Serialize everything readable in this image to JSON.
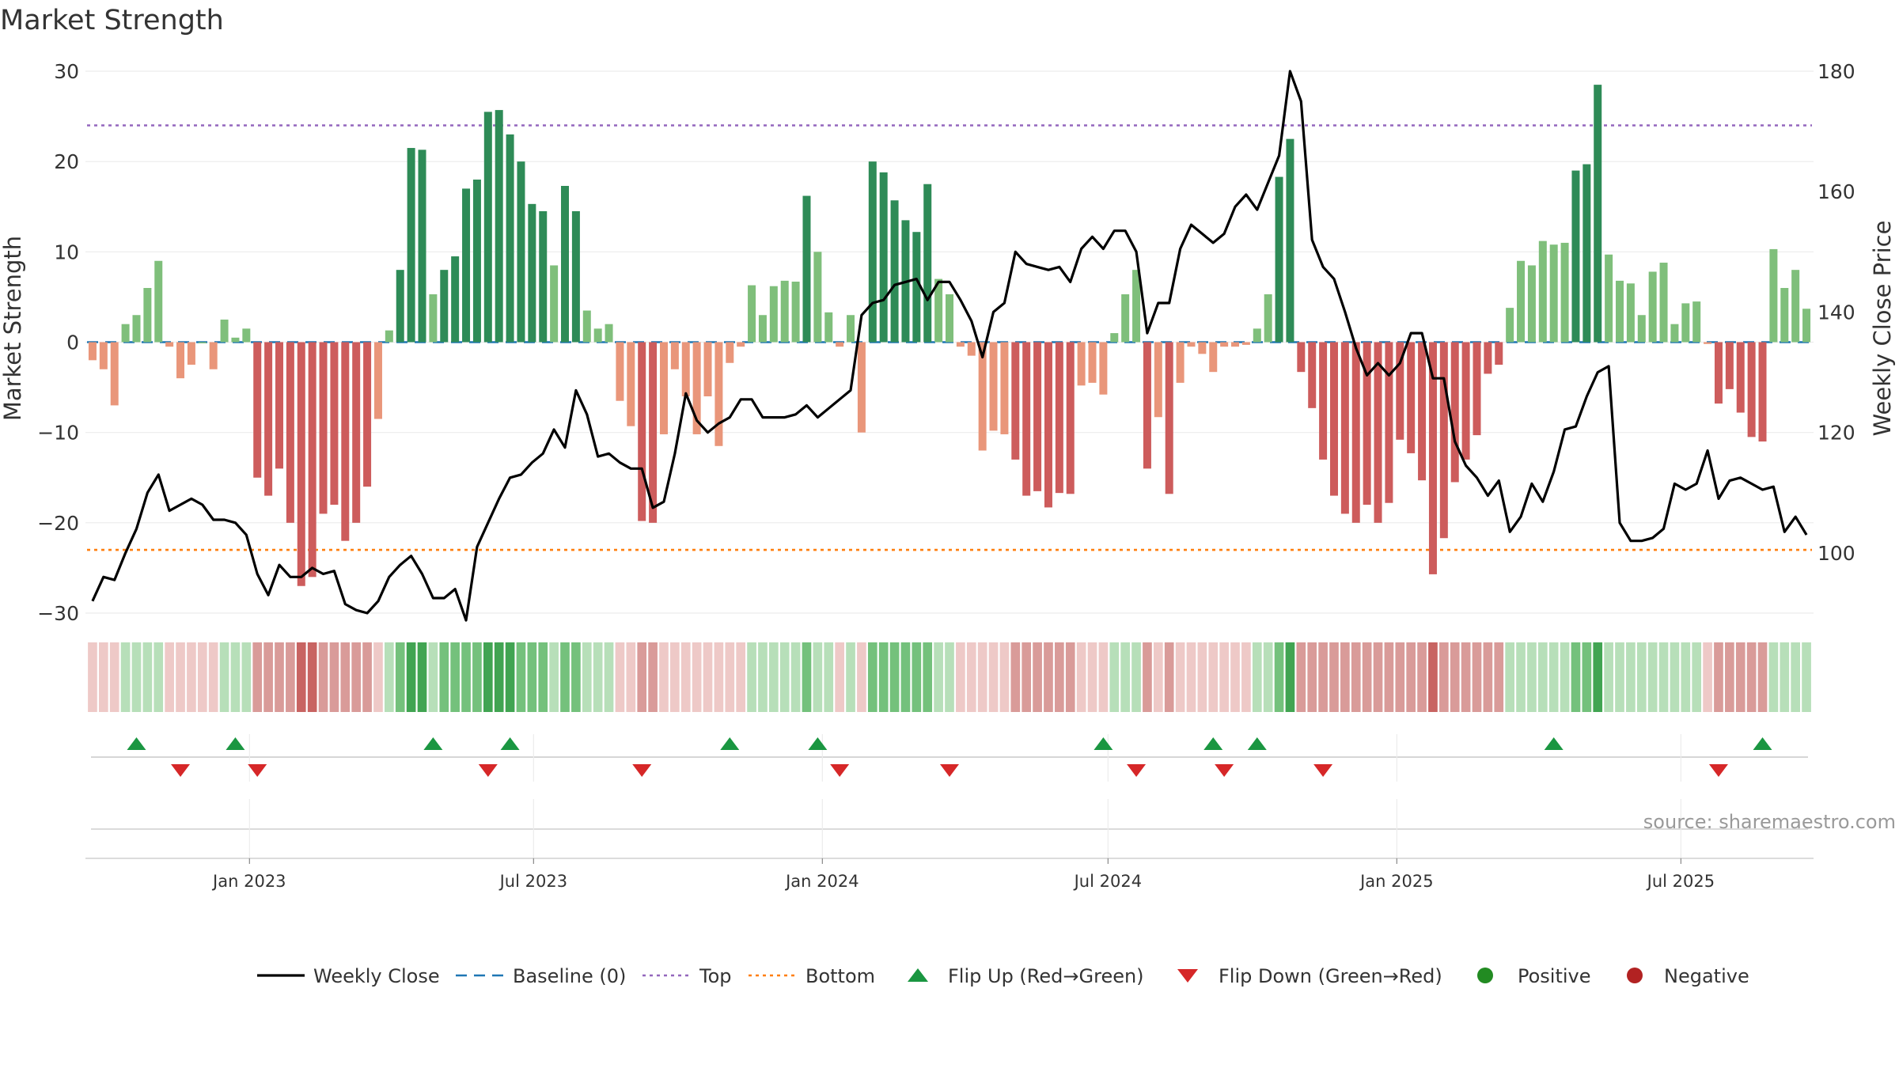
{
  "chart_data": {
    "type": "bar",
    "title": "Market Strength",
    "ylabel_left": "Market Strength",
    "ylabel_right": "Weekly Close Price",
    "source": "source: sharemaestro.com",
    "ylim_left": [
      -30,
      30
    ],
    "yticks_left": [
      30,
      20,
      10,
      0,
      -10,
      -20,
      -30
    ],
    "ytick_labels_left": [
      "30",
      "20",
      "10",
      "0",
      "−10",
      "−20",
      "−30"
    ],
    "ylim_right": [
      90,
      180
    ],
    "yticks_right": [
      180,
      160,
      140,
      120,
      100
    ],
    "x_start": "2022-09-23",
    "x_end": "2025-09-19",
    "xticks": [
      "2023-01-01",
      "2023-07-01",
      "2024-01-01",
      "2024-07-01",
      "2025-01-01",
      "2025-07-01"
    ],
    "xtick_labels": [
      "Jan 2023",
      "Jul 2023",
      "Jan 2024",
      "Jul 2024",
      "Jan 2025",
      "Jul 2025"
    ],
    "top_line": 24,
    "bottom_line": -23,
    "grid": true,
    "legend_position": "bottom",
    "colors": {
      "up_dark": "#2e8b57",
      "up_light": "#7fbf7b",
      "down_dark": "#cd5c5c",
      "down_light": "#e9967a",
      "close_line": "#000000",
      "baseline": "#1f77b4",
      "top": "#9467bd",
      "bottom": "#ff7f0e",
      "flip_up": "#1a9641",
      "flip_down": "#d62728",
      "positive": "#228b22",
      "negative": "#b22222"
    },
    "strength": [
      -2,
      -3,
      -7,
      2,
      3,
      6,
      9,
      -0.5,
      -4,
      -2.5,
      0,
      -3,
      2.5,
      0.5,
      1.5,
      -15,
      -17,
      -14,
      -20,
      -27,
      -26,
      -19,
      -18,
      -22,
      -20,
      -16,
      -8.5,
      1.3,
      8,
      21.5,
      21.3,
      5.3,
      8,
      9.5,
      17,
      18,
      25.5,
      25.7,
      23,
      20,
      15.3,
      14.5,
      8.5,
      17.3,
      14.5,
      3.5,
      1.5,
      2,
      -6.5,
      -9.3,
      -19.8,
      -20,
      -10.2,
      -3,
      -6,
      -10.2,
      -6,
      -11.5,
      -2.3,
      -0.5,
      6.3,
      3,
      6.2,
      6.8,
      6.7,
      16.2,
      10,
      3.3,
      -0.5,
      3,
      -10,
      20,
      18.8,
      15.7,
      13.5,
      12.2,
      17.5,
      7,
      5.3,
      -0.5,
      -1.5,
      -12,
      -9.8,
      -10.2,
      -13,
      -17,
      -16.5,
      -18.3,
      -16.7,
      -16.8,
      -4.8,
      -4.5,
      -5.8,
      1,
      5.3,
      8,
      -14,
      -8.3,
      -16.8,
      -4.5,
      -0.5,
      -1.3,
      -3.3,
      -0.5,
      -0.5,
      -0.3,
      1.5,
      5.3,
      18.3,
      22.5,
      -3.3,
      -7.3,
      -13,
      -17,
      -19,
      -20,
      -18,
      -20,
      -17.8,
      -10.8,
      -12.3,
      -15.3,
      -25.7,
      -21.7,
      -15.5,
      -13,
      -10.3,
      -3.5,
      -2.5,
      3.8,
      9,
      8.5,
      11.2,
      10.8,
      11,
      19,
      19.7,
      28.5,
      9.7,
      6.8,
      6.5,
      3,
      7.8,
      8.8,
      2,
      4.3,
      4.5,
      -0.2,
      -6.8,
      -5.2,
      -7.8,
      -10.5,
      -11,
      10.3,
      6,
      8,
      3.7
    ],
    "close": [
      92,
      96,
      95.5,
      100,
      104,
      110,
      113,
      107,
      108,
      109,
      108,
      105.5,
      105.5,
      105,
      103,
      96.5,
      93,
      98,
      96,
      96,
      97.5,
      96.5,
      97,
      91.5,
      90.5,
      90,
      92,
      96,
      98,
      99.5,
      96.5,
      92.5,
      92.5,
      94,
      88.8,
      101,
      105,
      109,
      112.5,
      113,
      115,
      116.5,
      120.5,
      117.5,
      127,
      123,
      116,
      116.5,
      115,
      114,
      114,
      107.5,
      108.5,
      116.5,
      126.5,
      122,
      120,
      121.5,
      122.5,
      125.5,
      125.5,
      122.5,
      122.5,
      122.5,
      123,
      124.5,
      122.5,
      124,
      125.5,
      127,
      139.5,
      141.5,
      142,
      144.5,
      145,
      145.5,
      142,
      145,
      145,
      142,
      138.5,
      132.5,
      140,
      141.5,
      150,
      148,
      147.5,
      147,
      147.5,
      145,
      150.5,
      152.5,
      150.5,
      153.5,
      153.5,
      150,
      136.5,
      141.5,
      141.5,
      150.5,
      154.5,
      153,
      151.5,
      153,
      157.5,
      159.5,
      157,
      161.5,
      166,
      180,
      175,
      152,
      147.5,
      145.5,
      140,
      134,
      129.5,
      131.5,
      129.5,
      131.5,
      136.5,
      136.5,
      129,
      129,
      118.5,
      114.5,
      112.5,
      109.5,
      112,
      103.5,
      106,
      111.5,
      108.5,
      113.5,
      120.5,
      121,
      126,
      130,
      131,
      105,
      102,
      102,
      102.5,
      104,
      111.5,
      110.5,
      111.5,
      117,
      109,
      112,
      112.5,
      111.5,
      110.5,
      111,
      103.5,
      106,
      103
    ],
    "strip_levels": [
      -1,
      -1,
      -1,
      1,
      1,
      1,
      1,
      -1,
      -1,
      -1,
      -1,
      -1,
      1,
      1,
      1,
      -2,
      -2,
      -2,
      -2,
      -3,
      -3,
      -2,
      -2,
      -2,
      -2,
      -2,
      -1,
      1,
      2,
      3,
      3,
      1,
      2,
      2,
      2,
      2,
      3,
      3,
      3,
      2,
      2,
      2,
      1,
      2,
      2,
      1,
      1,
      1,
      -1,
      -1,
      -2,
      -2,
      -1,
      -1,
      -1,
      -1,
      -1,
      -1,
      -1,
      -1,
      1,
      1,
      1,
      1,
      1,
      2,
      1,
      1,
      -1,
      1,
      -1,
      2,
      2,
      2,
      2,
      2,
      2,
      1,
      1,
      -1,
      -1,
      -1,
      -1,
      -1,
      -2,
      -2,
      -2,
      -2,
      -2,
      -2,
      -1,
      -1,
      -1,
      1,
      1,
      1,
      -2,
      -1,
      -2,
      -1,
      -1,
      -1,
      -1,
      -1,
      -1,
      -1,
      1,
      1,
      2,
      3,
      -2,
      -2,
      -2,
      -2,
      -2,
      -2,
      -2,
      -2,
      -2,
      -2,
      -2,
      -2,
      -3,
      -2,
      -2,
      -2,
      -2,
      -2,
      -2,
      1,
      1,
      1,
      1,
      1,
      1,
      2,
      2,
      3,
      1,
      1,
      1,
      1,
      1,
      1,
      1,
      1,
      1,
      -1,
      -2,
      -2,
      -2,
      -2,
      -2,
      1,
      1,
      1,
      1
    ],
    "flip_up_dates": [
      "2022-10-21",
      "2022-12-23",
      "2023-04-28",
      "2023-06-16",
      "2023-11-03",
      "2023-12-29",
      "2024-06-28",
      "2024-09-06",
      "2024-10-04",
      "2025-04-11",
      "2025-08-22"
    ],
    "flip_down_dates": [
      "2022-11-18",
      "2023-01-06",
      "2023-06-02",
      "2023-09-08",
      "2024-01-12",
      "2024-03-22",
      "2024-07-19",
      "2024-09-13",
      "2024-11-15",
      "2025-07-25"
    ],
    "legend": [
      "Weekly Close",
      "Baseline (0)",
      "Top",
      "Bottom",
      "Flip Up (Red→Green)",
      "Flip Down (Green→Red)",
      "Positive",
      "Negative"
    ]
  }
}
